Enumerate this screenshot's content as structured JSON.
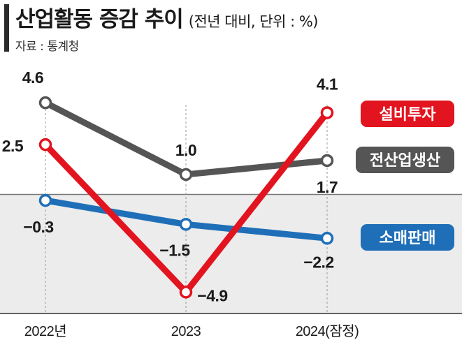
{
  "header": {
    "title": "산업활동 증감 추이",
    "subtitle": "(전년 대비, 단위 : %)",
    "source": "자료 : 통계청"
  },
  "chart_data": {
    "type": "line",
    "title": "산업활동 증감 추이",
    "subtitle": "(전년 대비, 단위 : %)",
    "categories": [
      "2022년",
      "2023",
      "2024(잠정)"
    ],
    "series": [
      {
        "name": "설비투자",
        "values": [
          2.5,
          -4.9,
          4.1
        ],
        "labels": [
          "2.5",
          "−4.9",
          "4.1"
        ],
        "color": "#e2141f"
      },
      {
        "name": "전산업생산",
        "values": [
          4.6,
          1.0,
          1.7
        ],
        "labels": [
          "4.6",
          "1.0",
          "1.7"
        ],
        "color": "#555555"
      },
      {
        "name": "소매판매",
        "values": [
          -0.3,
          -1.5,
          -2.2
        ],
        "labels": [
          "−0.3",
          "−1.5",
          "−2.2"
        ],
        "color": "#1f6fb8"
      }
    ],
    "ylim": [
      -5.5,
      5.5
    ],
    "zero_band": "below zero shaded light gray",
    "grid": false,
    "legend": "right, colored rounded boxes",
    "colors": {
      "negative_band": "#ececec",
      "guide_line": "#9a9a9a"
    }
  }
}
